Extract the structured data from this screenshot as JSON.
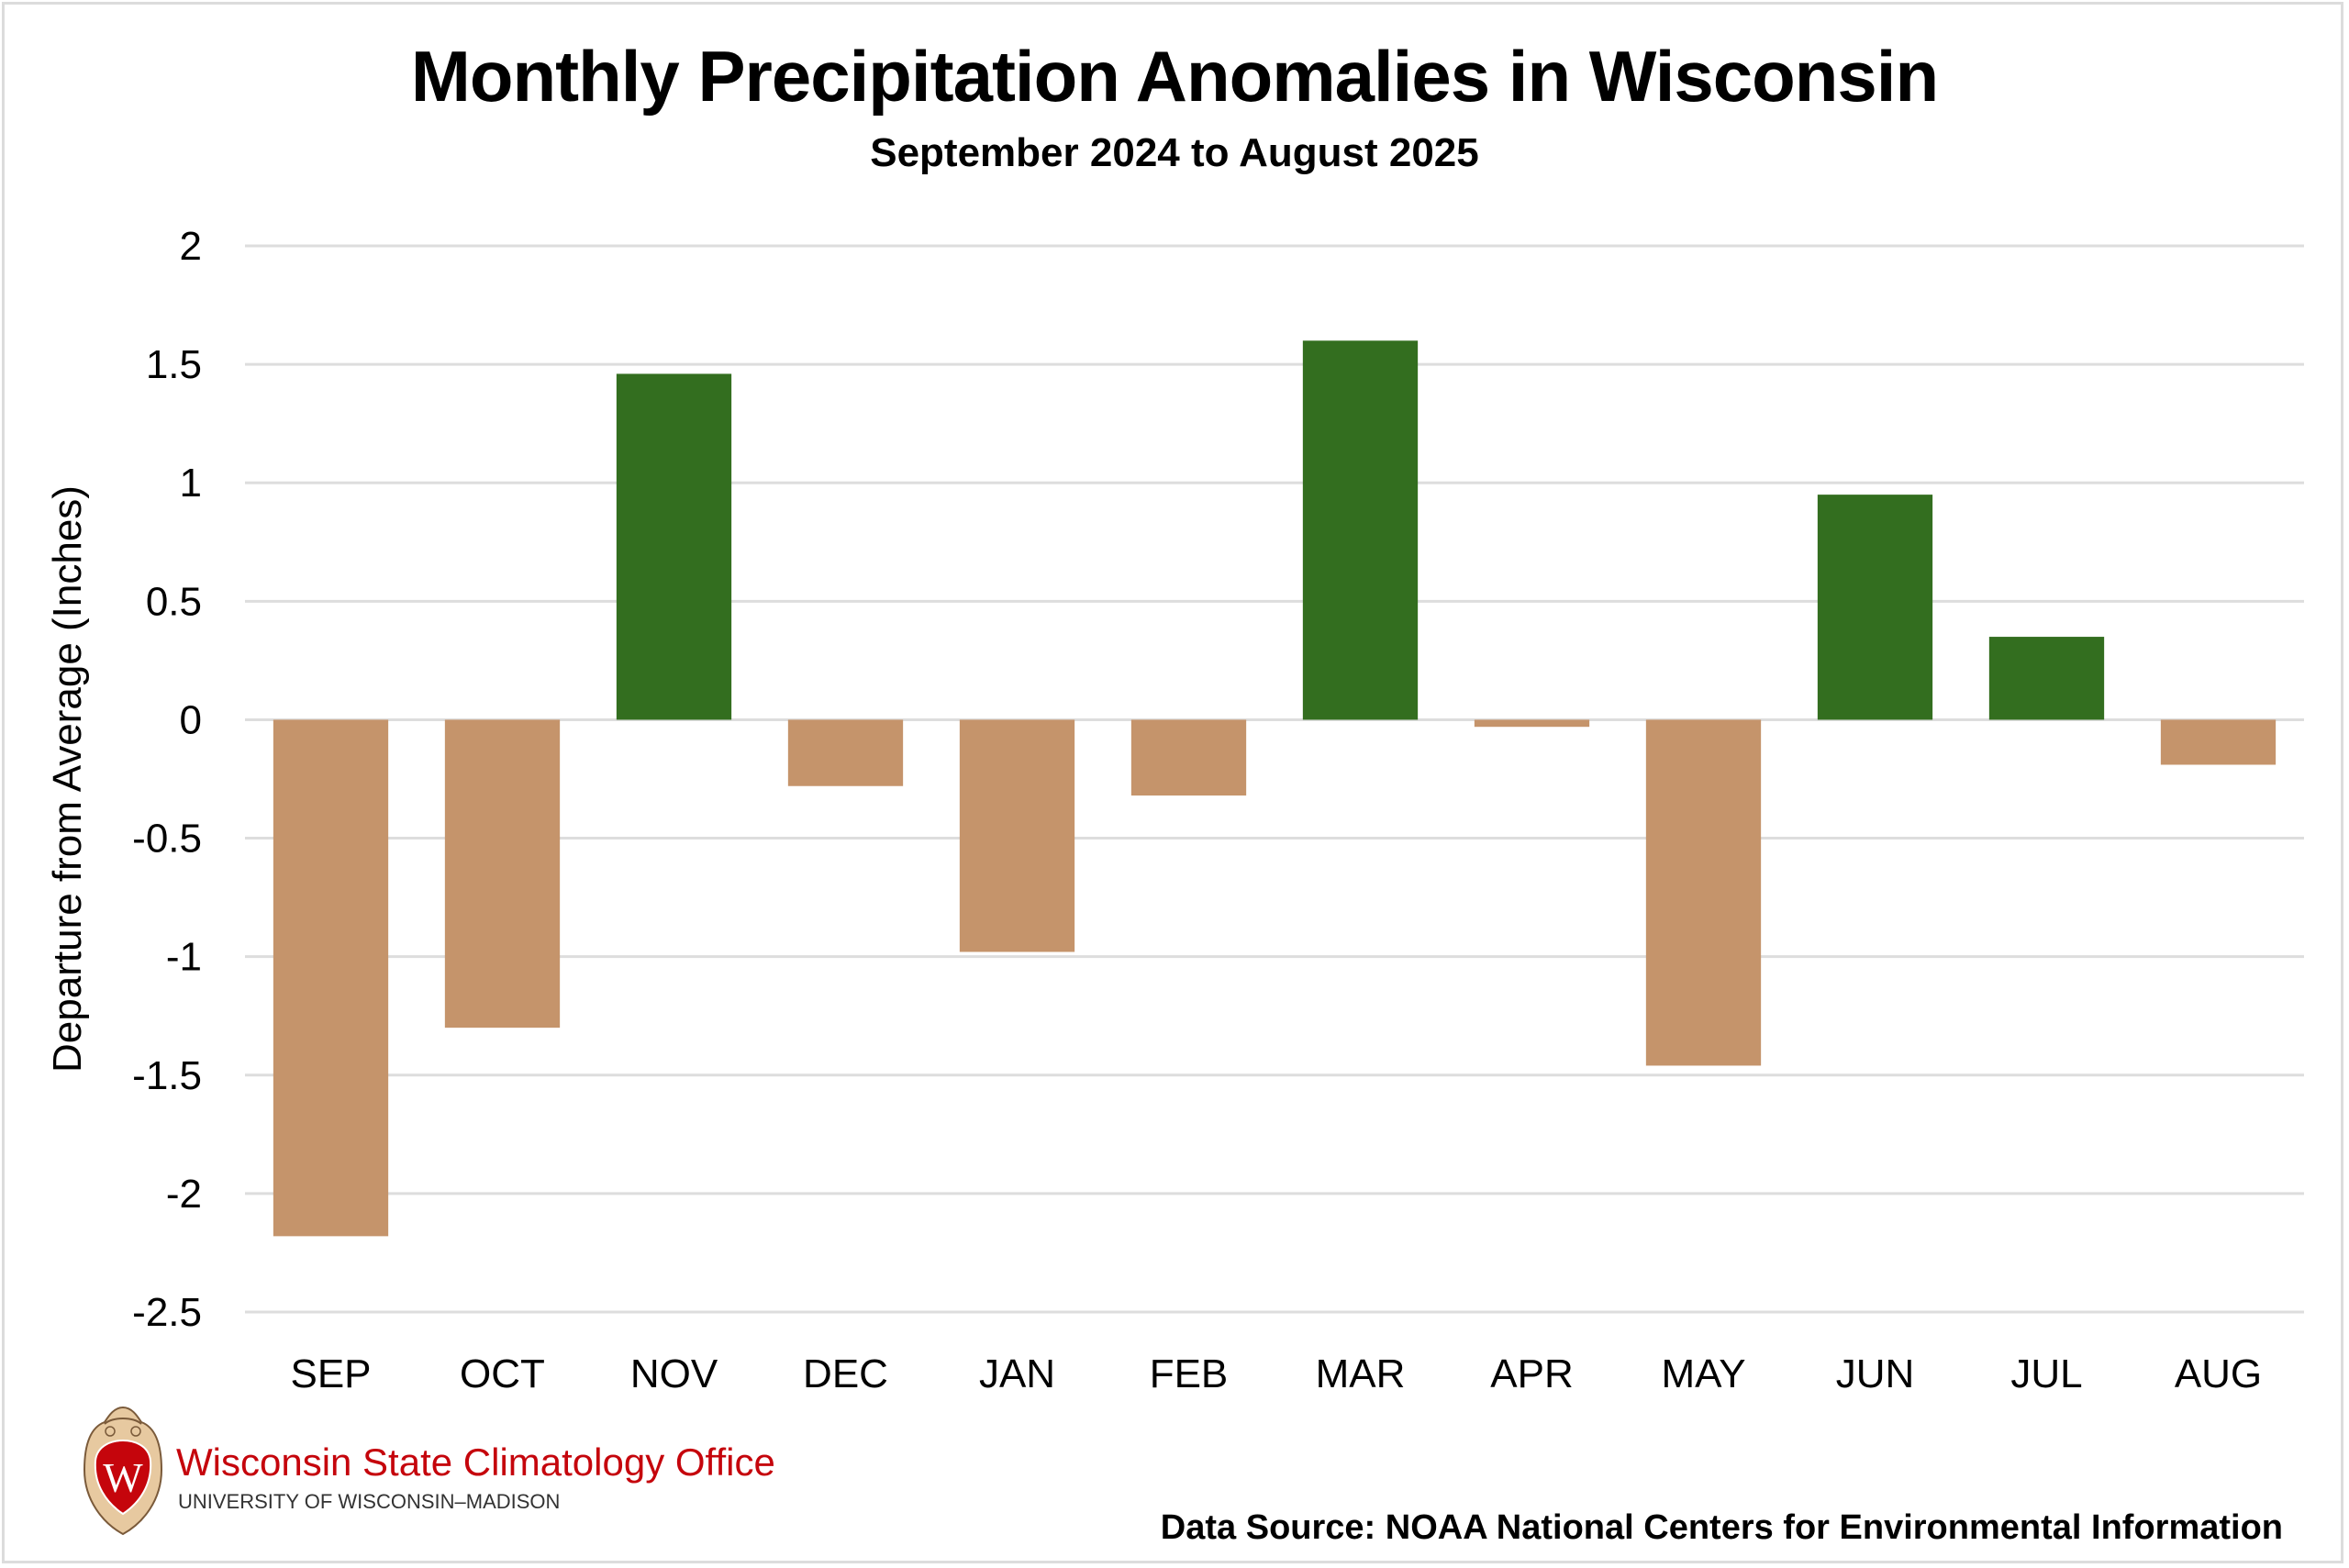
{
  "chart_data": {
    "type": "bar",
    "title": "Monthly Precipitation Anomalies in Wisconsin",
    "subtitle": "September 2024 to August 2025",
    "xlabel": "",
    "ylabel": "Departure from Average (Inches)",
    "categories": [
      "SEP",
      "OCT",
      "NOV",
      "DEC",
      "JAN",
      "FEB",
      "MAR",
      "APR",
      "MAY",
      "JUN",
      "JUL",
      "AUG"
    ],
    "values": [
      -2.18,
      -1.3,
      1.46,
      -0.28,
      -0.98,
      -0.32,
      1.6,
      -0.03,
      -1.46,
      0.95,
      0.35,
      -0.19
    ],
    "ylim": [
      -2.5,
      2
    ],
    "yticks": [
      2,
      1.5,
      1,
      0.5,
      0,
      -0.5,
      -1,
      -1.5,
      -2,
      -2.5
    ],
    "ytick_labels": [
      "2",
      "1.5",
      "1",
      "0.5",
      "0",
      "-0.5",
      "-1",
      "-1.5",
      "-2",
      "-2.5"
    ],
    "grid": true,
    "legend": "none",
    "colors": {
      "positive": "#336e1f",
      "negative": "#c5946b",
      "grid": "#dddddd"
    }
  },
  "footer": {
    "org_name": "Wisconsin State Climatology Office",
    "org_sub": "UNIVERSITY OF WISCONSIN–MADISON",
    "logo_letter": "W",
    "source": "Data Source: NOAA National Centers for Environmental Information"
  }
}
